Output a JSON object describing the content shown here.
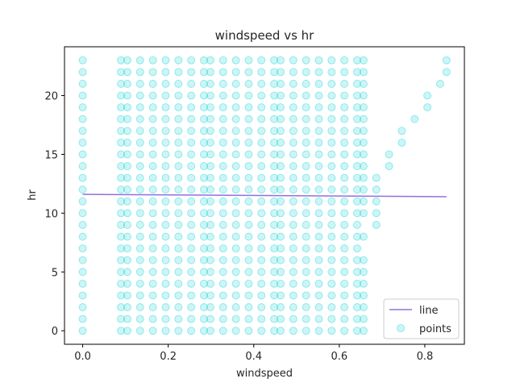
{
  "chart_data": {
    "type": "scatter",
    "title": "windspeed vs hr",
    "xlabel": "windspeed",
    "ylabel": "hr",
    "xlim": [
      -0.0425,
      0.8925
    ],
    "ylim": [
      -1.15,
      24.15
    ],
    "xticks": [
      0.0,
      0.2,
      0.4,
      0.6,
      0.8
    ],
    "xtick_labels": [
      "0.0",
      "0.2",
      "0.4",
      "0.6",
      "0.8"
    ],
    "yticks": [
      0,
      5,
      10,
      15,
      20
    ],
    "ytick_labels": [
      "0",
      "5",
      "10",
      "15",
      "20"
    ],
    "grid": false,
    "legend": {
      "placement": "lower-right",
      "entries": [
        "line",
        "points"
      ]
    },
    "colors": {
      "points": "#00CED1",
      "line": "#9370DB"
    },
    "point_alpha": 0.2,
    "series": [
      {
        "name": "points",
        "type": "scatter",
        "columns": [
          {
            "x": 0.0,
            "hours": [
              0,
              1,
              2,
              3,
              4,
              5,
              6,
              7,
              8,
              9,
              10,
              11,
              12,
              13,
              14,
              15,
              16,
              17,
              18,
              19,
              20,
              21,
              22,
              23
            ]
          },
          {
            "x": 0.0896,
            "hours": [
              0,
              1,
              2,
              3,
              4,
              5,
              6,
              7,
              8,
              9,
              10,
              11,
              12,
              13,
              14,
              15,
              16,
              17,
              18,
              19,
              20,
              21,
              22,
              23
            ]
          },
          {
            "x": 0.1045,
            "hours": [
              0,
              1,
              2,
              3,
              4,
              5,
              6,
              7,
              8,
              9,
              10,
              11,
              12,
              13,
              14,
              15,
              16,
              17,
              18,
              19,
              20,
              21,
              22,
              23
            ]
          },
          {
            "x": 0.1343,
            "hours": [
              0,
              1,
              2,
              3,
              4,
              5,
              6,
              7,
              8,
              9,
              10,
              11,
              12,
              13,
              14,
              15,
              16,
              17,
              18,
              19,
              20,
              21,
              22,
              23
            ]
          },
          {
            "x": 0.1642,
            "hours": [
              0,
              1,
              2,
              3,
              4,
              5,
              6,
              7,
              8,
              9,
              10,
              11,
              12,
              13,
              14,
              15,
              16,
              17,
              18,
              19,
              20,
              21,
              22,
              23
            ]
          },
          {
            "x": 0.194,
            "hours": [
              0,
              1,
              2,
              3,
              4,
              5,
              6,
              7,
              8,
              9,
              10,
              11,
              12,
              13,
              14,
              15,
              16,
              17,
              18,
              19,
              20,
              21,
              22,
              23
            ]
          },
          {
            "x": 0.2239,
            "hours": [
              0,
              1,
              2,
              3,
              4,
              5,
              6,
              7,
              8,
              9,
              10,
              11,
              12,
              13,
              14,
              15,
              16,
              17,
              18,
              19,
              20,
              21,
              22,
              23
            ]
          },
          {
            "x": 0.2537,
            "hours": [
              0,
              1,
              2,
              3,
              4,
              5,
              6,
              7,
              8,
              9,
              10,
              11,
              12,
              13,
              14,
              15,
              16,
              17,
              18,
              19,
              20,
              21,
              22,
              23
            ]
          },
          {
            "x": 0.2836,
            "hours": [
              0,
              1,
              2,
              3,
              4,
              5,
              6,
              7,
              8,
              9,
              10,
              11,
              12,
              13,
              14,
              15,
              16,
              17,
              18,
              19,
              20,
              21,
              22,
              23
            ]
          },
          {
            "x": 0.2985,
            "hours": [
              0,
              1,
              2,
              3,
              4,
              5,
              6,
              7,
              8,
              9,
              10,
              11,
              12,
              13,
              14,
              15,
              16,
              17,
              18,
              19,
              20,
              21,
              22,
              23
            ]
          },
          {
            "x": 0.3284,
            "hours": [
              0,
              1,
              2,
              3,
              4,
              5,
              6,
              7,
              8,
              9,
              10,
              11,
              12,
              13,
              14,
              15,
              16,
              17,
              18,
              19,
              20,
              21,
              22,
              23
            ]
          },
          {
            "x": 0.3582,
            "hours": [
              0,
              1,
              2,
              3,
              4,
              5,
              6,
              7,
              8,
              9,
              10,
              11,
              12,
              13,
              14,
              15,
              16,
              17,
              18,
              19,
              20,
              21,
              22,
              23
            ]
          },
          {
            "x": 0.3881,
            "hours": [
              0,
              1,
              2,
              3,
              4,
              5,
              6,
              7,
              8,
              9,
              10,
              11,
              12,
              13,
              14,
              15,
              16,
              17,
              18,
              19,
              20,
              21,
              22,
              23
            ]
          },
          {
            "x": 0.4179,
            "hours": [
              0,
              1,
              2,
              3,
              4,
              5,
              6,
              7,
              8,
              9,
              10,
              11,
              12,
              13,
              14,
              15,
              16,
              17,
              18,
              19,
              20,
              21,
              22,
              23
            ]
          },
          {
            "x": 0.4478,
            "hours": [
              0,
              1,
              2,
              3,
              4,
              5,
              6,
              7,
              8,
              9,
              10,
              11,
              12,
              13,
              14,
              15,
              16,
              17,
              18,
              19,
              20,
              21,
              22,
              23
            ]
          },
          {
            "x": 0.4627,
            "hours": [
              0,
              1,
              2,
              3,
              4,
              5,
              6,
              7,
              8,
              9,
              10,
              11,
              12,
              13,
              14,
              15,
              16,
              17,
              18,
              19,
              20,
              21,
              22,
              23
            ]
          },
          {
            "x": 0.4925,
            "hours": [
              0,
              1,
              2,
              3,
              4,
              5,
              6,
              7,
              8,
              9,
              10,
              11,
              12,
              13,
              14,
              15,
              16,
              17,
              18,
              19,
              20,
              21,
              22,
              23
            ]
          },
          {
            "x": 0.5224,
            "hours": [
              0,
              1,
              2,
              3,
              4,
              5,
              6,
              7,
              8,
              9,
              10,
              11,
              12,
              13,
              14,
              15,
              16,
              17,
              18,
              19,
              20,
              21,
              22,
              23
            ]
          },
          {
            "x": 0.5522,
            "hours": [
              0,
              1,
              2,
              3,
              4,
              5,
              6,
              7,
              8,
              9,
              10,
              11,
              12,
              13,
              14,
              15,
              16,
              17,
              18,
              19,
              20,
              21,
              22,
              23
            ]
          },
          {
            "x": 0.5821,
            "hours": [
              0,
              1,
              2,
              3,
              4,
              5,
              6,
              7,
              8,
              9,
              10,
              11,
              12,
              13,
              14,
              15,
              16,
              17,
              18,
              19,
              20,
              21,
              22,
              23
            ]
          },
          {
            "x": 0.6119,
            "hours": [
              0,
              1,
              2,
              3,
              4,
              5,
              6,
              7,
              8,
              9,
              10,
              11,
              12,
              13,
              14,
              15,
              16,
              17,
              18,
              19,
              20,
              21,
              22,
              23
            ]
          },
          {
            "x": 0.6418,
            "hours": [
              0,
              1,
              2,
              3,
              4,
              5,
              6,
              7,
              8,
              9,
              10,
              11,
              12,
              13,
              14,
              15,
              16,
              17,
              18,
              19,
              20,
              21,
              22,
              23
            ]
          },
          {
            "x": 0.6567,
            "hours": [
              0,
              1,
              2,
              3,
              4,
              5,
              6,
              8,
              10,
              11,
              12,
              13,
              14,
              15,
              16,
              17,
              18,
              19,
              20,
              21,
              22,
              23
            ]
          },
          {
            "x": 0.6866,
            "hours": [
              9,
              10,
              11,
              12,
              13
            ]
          },
          {
            "x": 0.7164,
            "hours": [
              14,
              15
            ]
          },
          {
            "x": 0.7463,
            "hours": [
              16,
              17
            ]
          },
          {
            "x": 0.7761,
            "hours": [
              18
            ]
          },
          {
            "x": 0.806,
            "hours": [
              19,
              20
            ]
          },
          {
            "x": 0.8358,
            "hours": [
              21
            ]
          },
          {
            "x": 0.8507,
            "hours": [
              22,
              23
            ]
          }
        ]
      },
      {
        "name": "line",
        "type": "line",
        "x": [
          0.0,
          0.8507
        ],
        "y": [
          11.6,
          11.4
        ]
      }
    ]
  }
}
